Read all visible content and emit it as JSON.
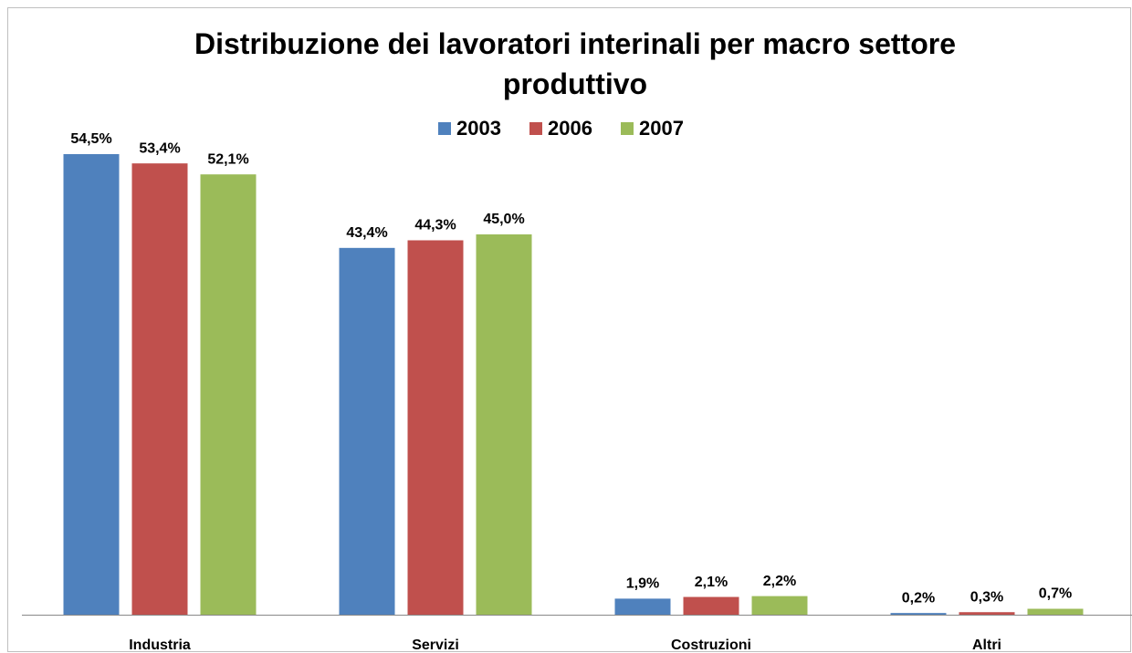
{
  "chart_data": {
    "type": "bar",
    "title": "Distribuzione dei lavoratori interinali per macro settore produttivo",
    "categories": [
      "Industria",
      "Servizi",
      "Costruzioni",
      "Altri"
    ],
    "series": [
      {
        "name": "2003",
        "color": "#4f81bd",
        "values": [
          54.5,
          43.4,
          1.9,
          0.2
        ],
        "value_labels": [
          "54,5%",
          "43,4%",
          "1,9%",
          "0,2%"
        ]
      },
      {
        "name": "2006",
        "color": "#c0504d",
        "values": [
          53.4,
          44.3,
          2.1,
          0.3
        ],
        "value_labels": [
          "53,4%",
          "44,3%",
          "2,1%",
          "0,3%"
        ]
      },
      {
        "name": "2007",
        "color": "#9bbb59",
        "values": [
          52.1,
          45.0,
          2.2,
          0.7
        ],
        "value_labels": [
          "52,1%",
          "45,0%",
          "2,2%",
          "0,7%"
        ]
      }
    ],
    "ylim": [
      0,
      60
    ],
    "legend": "top"
  }
}
